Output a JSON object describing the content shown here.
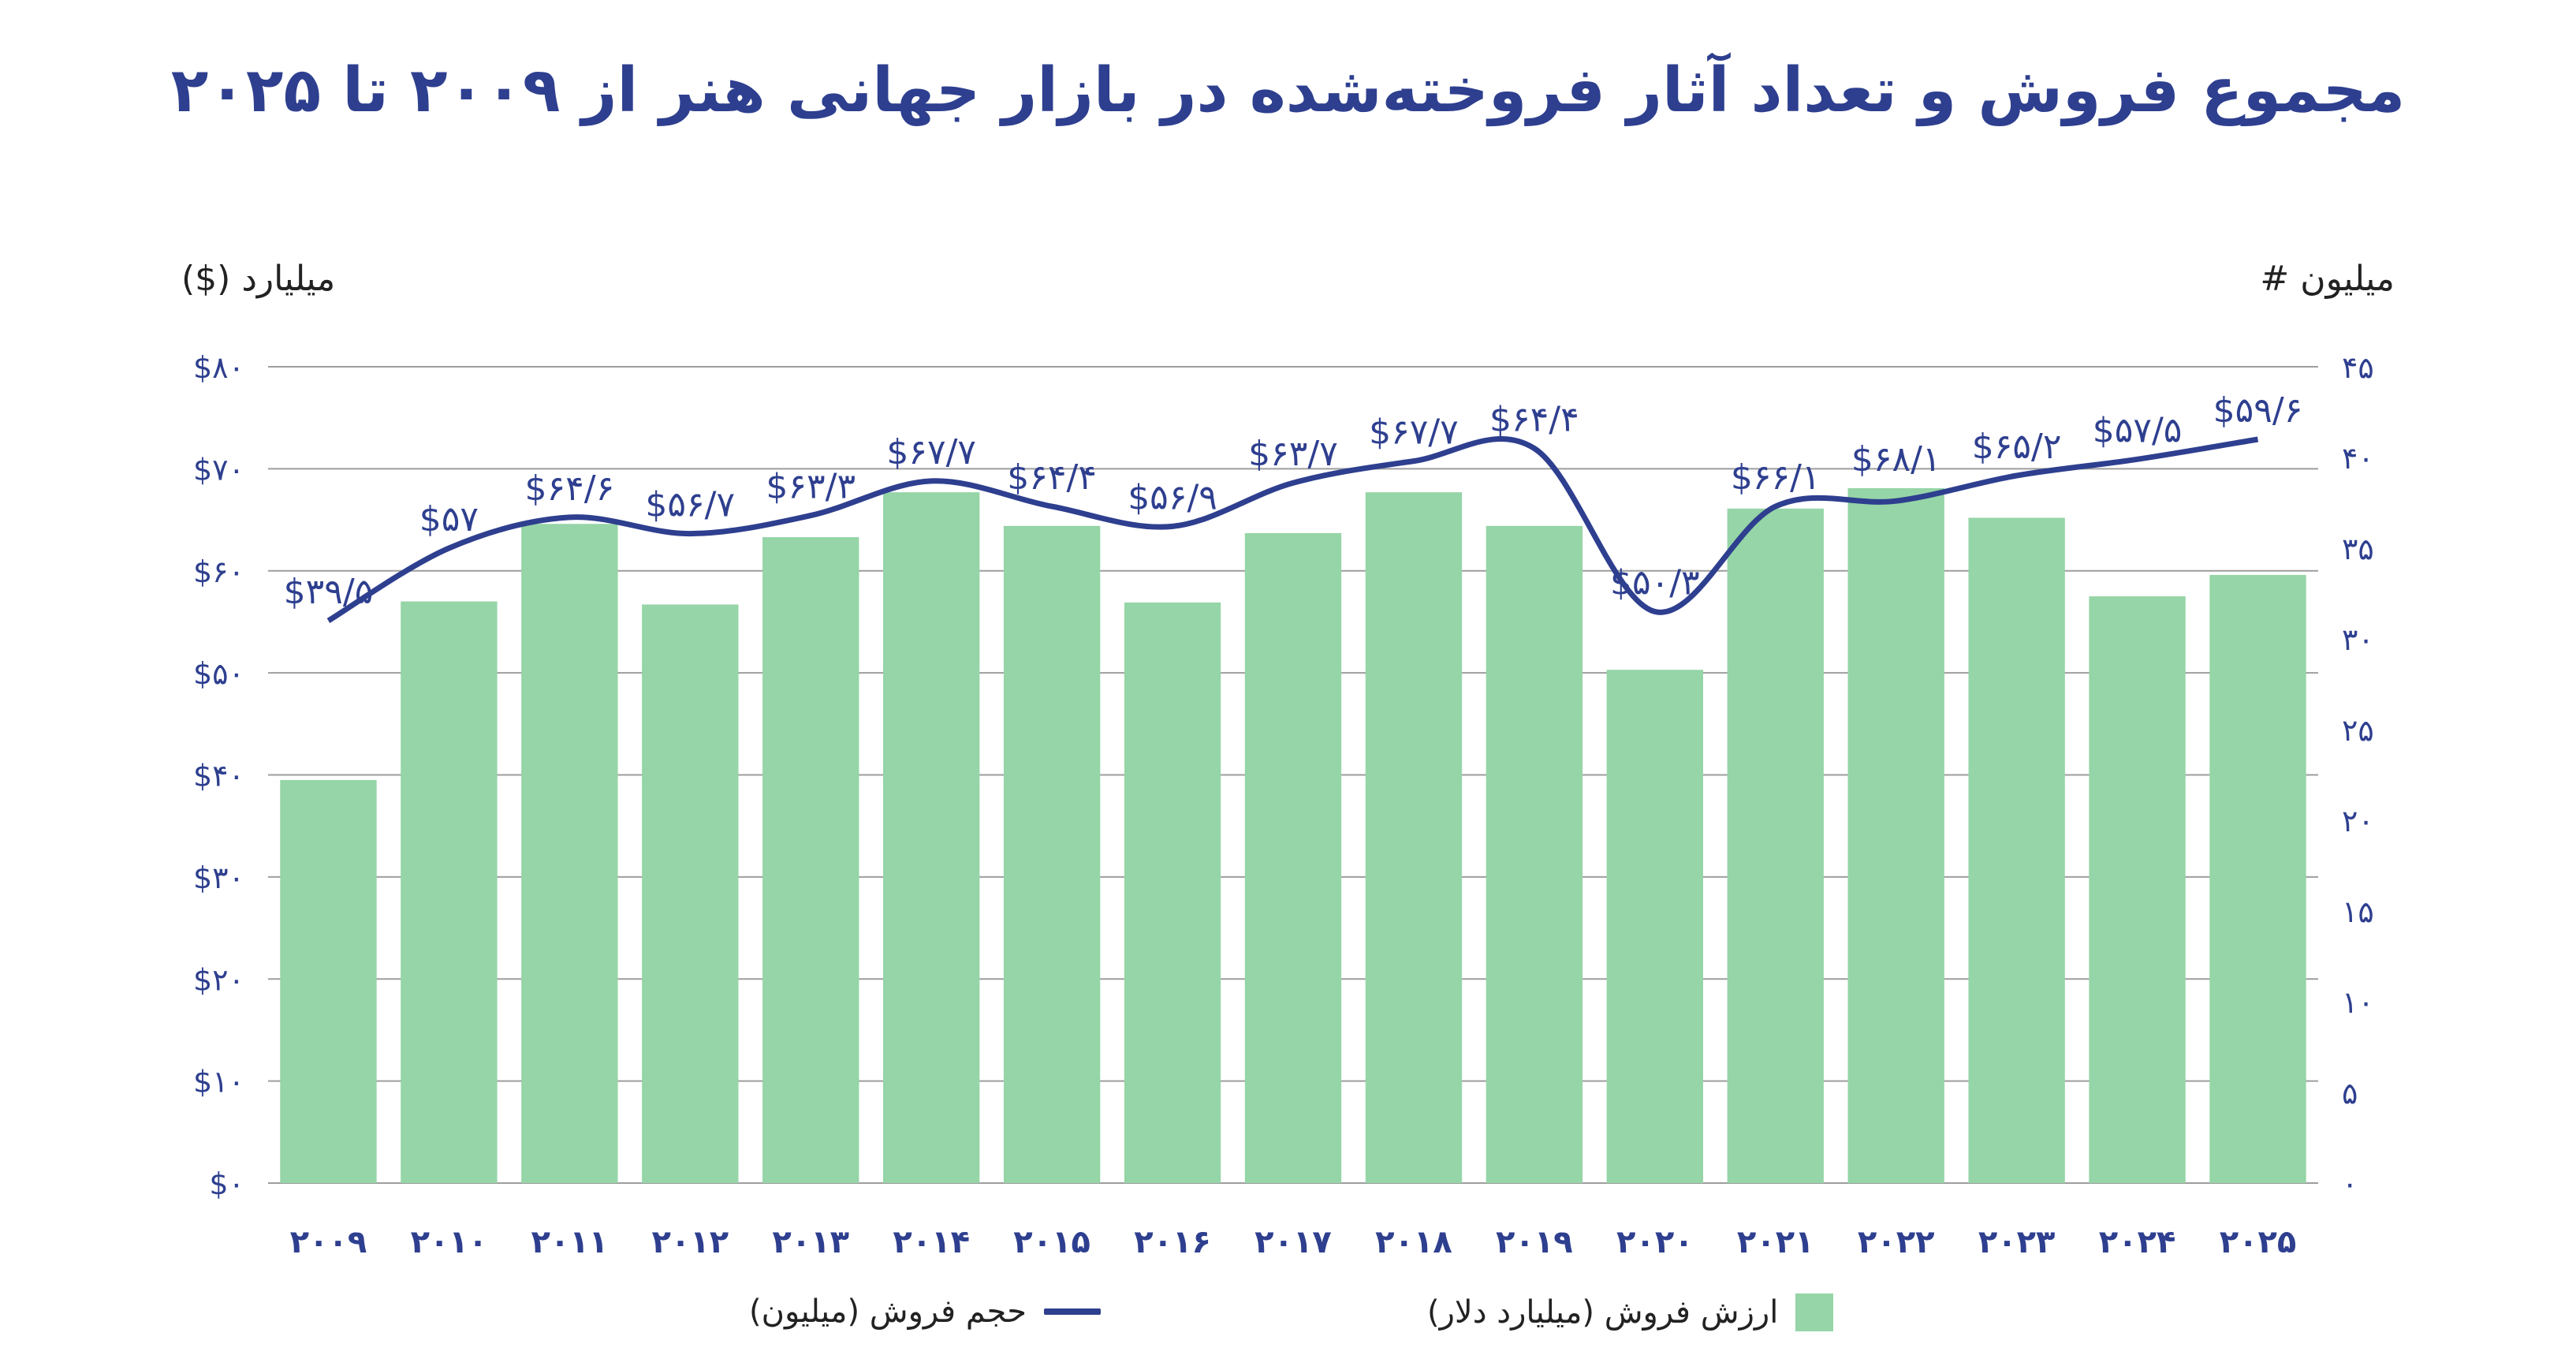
{
  "page": {
    "title": "مجموع فروش و تعداد آثار فروخته‌شده در بازار  جهانی هنر از ۲۰۰۹ تا ۲۰۲۵",
    "left_unit": "میلیارد ($)",
    "right_unit": "میلیون #"
  },
  "legend": {
    "bar_label": "ارزش فروش (میلیارد دلار)",
    "line_label": "حجم فروش (میلیون)"
  },
  "colors": {
    "bar": "#95d5a7",
    "line": "#2e3f8f",
    "grid": "#9e9e9e",
    "axis_text": "#2e3f8f"
  },
  "chart_data": {
    "type": "bar",
    "categories": [
      "۲۰۰۹",
      "۲۰۱۰",
      "۲۰۱۱",
      "۲۰۱۲",
      "۲۰۱۳",
      "۲۰۱۴",
      "۲۰۱۵",
      "۲۰۱۶",
      "۲۰۱۷",
      "۲۰۱۸",
      "۲۰۱۹",
      "۲۰۲۰",
      "۲۰۲۱",
      "۲۰۲۲",
      "۲۰۲۳",
      "۲۰۲۴",
      "۲۰۲۵"
    ],
    "series": [
      {
        "name": "ارزش فروش (میلیارد دلار)",
        "type": "bar",
        "axis": "left",
        "values": [
          39.5,
          57.0,
          64.6,
          56.7,
          63.3,
          67.7,
          64.4,
          56.9,
          63.7,
          67.7,
          64.4,
          50.3,
          66.1,
          68.1,
          65.2,
          57.5,
          59.6
        ],
        "labels": [
          "$۳۹/۵",
          "$۵۷",
          "$۶۴/۶",
          "$۵۶/۷",
          "$۶۳/۳",
          "$۶۷/۷",
          "$۶۴/۴",
          "$۵۶/۹",
          "$۶۳/۷",
          "$۶۷/۷",
          "$۶۴/۴",
          "$۵۰/۳",
          "$۶۶/۱",
          "$۶۸/۱",
          "$۶۵/۲",
          "$۵۷/۵",
          "$۵۹/۶"
        ]
      },
      {
        "name": "حجم فروش (میلیون)",
        "type": "line",
        "axis": "right",
        "values": [
          31.0,
          35.0,
          36.7,
          35.8,
          36.8,
          38.7,
          37.3,
          36.2,
          38.6,
          39.8,
          40.5,
          31.5,
          37.3,
          37.6,
          39.0,
          39.9,
          41.0
        ]
      }
    ],
    "left_axis": {
      "ylim": [
        0,
        80
      ],
      "ticks": [
        "$۰",
        "$۱۰",
        "$۲۰",
        "$۳۰",
        "$۴۰",
        "$۵۰",
        "$۶۰",
        "$۷۰",
        "$۸۰"
      ]
    },
    "right_axis": {
      "ylim": [
        0,
        45
      ],
      "ticks": [
        "۰",
        "۵",
        "۱۰",
        "۱۵",
        "۲۰",
        "۲۵",
        "۳۰",
        "۳۵",
        "۴۰",
        "۴۵"
      ]
    },
    "grid": true,
    "legend_position": "bottom"
  }
}
